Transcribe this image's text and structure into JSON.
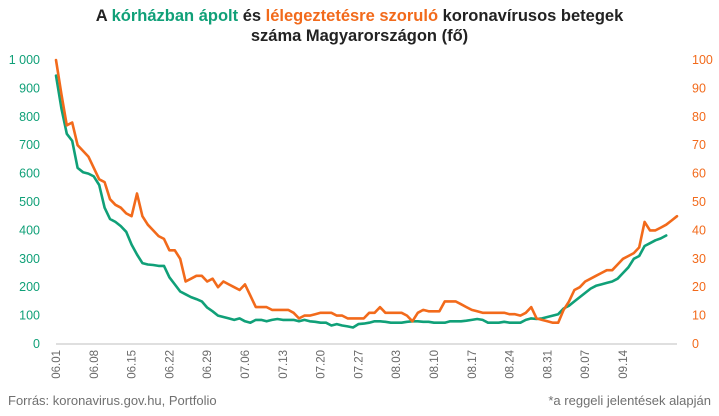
{
  "title": {
    "part1": "A ",
    "hospitalized": "kórházban ápolt",
    "part2": " és ",
    "ventilated": "lélegeztetésre szoruló",
    "part3": " koronavírusos betegek",
    "line2": "száma Magyarországon  (fő)"
  },
  "footer": {
    "source": "Forrás: koronavirus.gov.hu, Portfolio",
    "note": "*a reggeli jelentések alapján"
  },
  "colors": {
    "hospitalized": "#10a078",
    "ventilated": "#f26a1b",
    "axis": "#bfbfbf",
    "text": "#222222"
  },
  "chart_data": {
    "type": "line",
    "x_start": "06.01",
    "x_end": "09.20",
    "x_tick_labels": [
      "06.01",
      "06.08",
      "06.15",
      "06.22",
      "06.29",
      "07.06",
      "07.13",
      "07.20",
      "07.27",
      "08.03",
      "08.10",
      "08.17",
      "08.24",
      "08.31",
      "09.07",
      "09.14"
    ],
    "y_left_ticks": [
      "0",
      "100",
      "200",
      "300",
      "400",
      "500",
      "600",
      "700",
      "800",
      "900",
      "1 000"
    ],
    "y_right_ticks": [
      "0",
      "10",
      "20",
      "30",
      "40",
      "50",
      "60",
      "70",
      "80",
      "90",
      "100"
    ],
    "ylim_left": [
      0,
      1000
    ],
    "ylim_right": [
      0,
      100
    ],
    "grid": false,
    "series": [
      {
        "name": "kórházban ápolt",
        "axis": "left",
        "values": [
          945,
          830,
          740,
          715,
          620,
          605,
          600,
          590,
          560,
          480,
          440,
          430,
          415,
          395,
          350,
          315,
          285,
          280,
          278,
          275,
          275,
          235,
          210,
          185,
          175,
          165,
          158,
          150,
          128,
          115,
          100,
          95,
          90,
          85,
          90,
          80,
          75,
          85,
          85,
          80,
          85,
          88,
          85,
          85,
          85,
          80,
          85,
          80,
          78,
          75,
          75,
          65,
          70,
          65,
          62,
          58,
          70,
          72,
          75,
          80,
          80,
          78,
          75,
          75,
          75,
          78,
          80,
          80,
          78,
          78,
          75,
          75,
          75,
          80,
          80,
          80,
          82,
          85,
          88,
          85,
          75,
          75,
          75,
          78,
          75,
          75,
          75,
          85,
          90,
          88,
          90,
          95,
          100,
          105,
          125,
          135,
          150,
          165,
          180,
          195,
          205,
          210,
          215,
          220,
          230,
          250,
          270,
          300,
          310,
          345,
          355,
          365,
          372,
          382
        ]
      },
      {
        "name": "lélegeztetésre szoruló",
        "axis": "right",
        "values": [
          100,
          88,
          77,
          78,
          70,
          68,
          66,
          62,
          58,
          57,
          51,
          49,
          48,
          46,
          45,
          53,
          45,
          42,
          40,
          38,
          37,
          33,
          33,
          30,
          22,
          23,
          24,
          24,
          22,
          23,
          20,
          22,
          21,
          20,
          19,
          21,
          17,
          13,
          13,
          13,
          12,
          12,
          12,
          12,
          11,
          9,
          10,
          10,
          10.5,
          11,
          11,
          11,
          10,
          10,
          9,
          9,
          9,
          9,
          11,
          11,
          13,
          11,
          11,
          11,
          11,
          10,
          8,
          11,
          12,
          11.5,
          11.5,
          11.5,
          15,
          15,
          15,
          14,
          13,
          12,
          11.5,
          11,
          11,
          11,
          11,
          11,
          10.5,
          10.5,
          10,
          11,
          13,
          9,
          8.5,
          8,
          7.5,
          7.5,
          12,
          15,
          19,
          20,
          22,
          23,
          24,
          25,
          26,
          26,
          28,
          30,
          31,
          32,
          34,
          43,
          40,
          40,
          41,
          42,
          43.5,
          45
        ]
      }
    ]
  }
}
